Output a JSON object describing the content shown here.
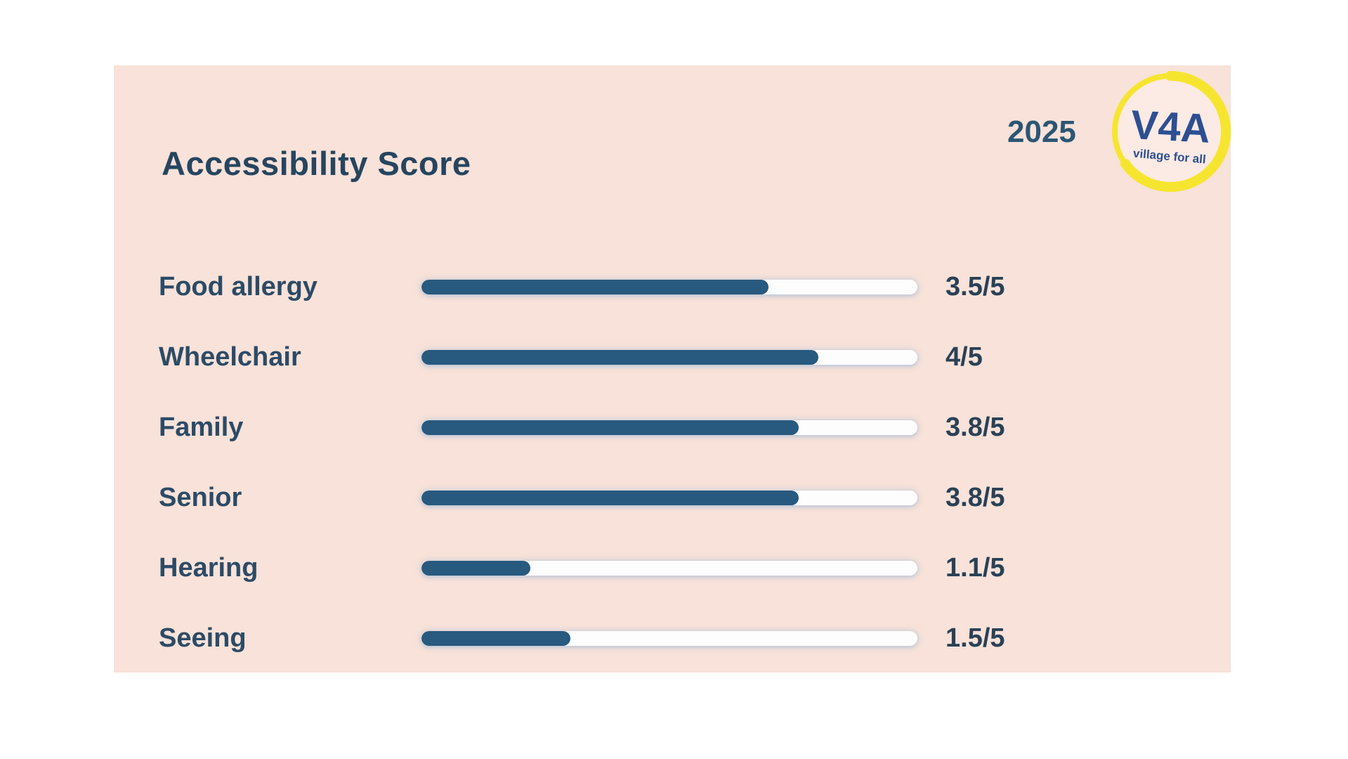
{
  "card": {
    "title": "Accessibility Score",
    "year": "2025",
    "logo": {
      "acronym": "V4A",
      "tagline": "village for all"
    },
    "colors": {
      "page_bg": "#ffffff",
      "card_bg": "#f8e2d9",
      "title_text": "#26455f",
      "label_text": "#2c4b66",
      "value_text": "#2a4156",
      "bar_fill": "#28597e",
      "bar_track": "#fdfdfd",
      "logo_yellow": "#f6e52f",
      "logo_blue": "#2d4f92",
      "logo_inner": "#fceae4",
      "year_text": "#2b5674"
    }
  },
  "chart_data": {
    "type": "bar",
    "orientation": "horizontal",
    "title": "Accessibility Score",
    "categories": [
      "Food allergy",
      "Wheelchair",
      "Family",
      "Senior",
      "Hearing",
      "Seeing"
    ],
    "values": [
      3.5,
      4,
      3.8,
      3.8,
      1.1,
      1.5
    ],
    "max_value": 5,
    "value_labels": [
      "3.5/5",
      "4/5",
      "3.8/5",
      "3.8/5",
      "1.1/5",
      "1.5/5"
    ],
    "annotations": [
      "2025"
    ],
    "grid": false,
    "legend": false
  }
}
